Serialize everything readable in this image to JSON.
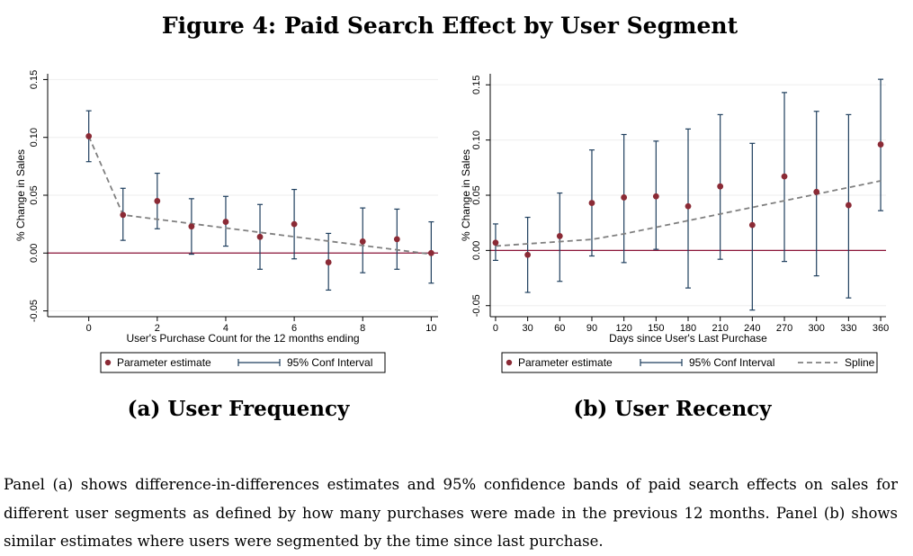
{
  "figure": {
    "title": "Figure 4: Paid Search Effect by User Segment",
    "note": "Panel (a) shows difference-in-differences estimates and 95% confidence bands of paid search effects on sales for different user segments as defined by how many purchases were made in the previous 12 months. Panel (b) shows similar estimates where users were segmented by the time since last purchase."
  },
  "colors": {
    "estimate": "#8B2A35",
    "ci": "#1F3F5E",
    "spline": "#808080",
    "zero_line": "#8B1538",
    "grid": "#EEEEEE"
  },
  "chart_data": [
    {
      "type": "scatter",
      "subcaption": "(a) User Frequency",
      "xlabel": "User's Purchase Count for the 12 months ending",
      "ylabel": "% Change in Sales",
      "xlim": [
        -1.2,
        10.2
      ],
      "ylim": [
        -0.055,
        0.155
      ],
      "xticks": [
        0,
        2,
        4,
        6,
        8,
        10
      ],
      "xtick_labels": [
        "0",
        "2",
        "4",
        "6",
        "8",
        "10"
      ],
      "yticks": [
        -0.05,
        0,
        0.05,
        0.1,
        0.15
      ],
      "ytick_labels": [
        "-0.05",
        "0.00",
        "0.05",
        "0.10",
        "0.15"
      ],
      "grid": true,
      "zero_line": true,
      "legend_position": "bottom",
      "legend": [
        "Parameter estimate",
        "95% Conf Interval"
      ],
      "series": [
        {
          "name": "Parameter estimate",
          "x": [
            0,
            1,
            2,
            3,
            4,
            5,
            6,
            7,
            8,
            9,
            10
          ],
          "y": [
            0.101,
            0.033,
            0.045,
            0.023,
            0.027,
            0.014,
            0.025,
            -0.008,
            0.01,
            0.012,
            0.0
          ]
        },
        {
          "name": "95% Conf Interval",
          "x": [
            0,
            1,
            2,
            3,
            4,
            5,
            6,
            7,
            8,
            9,
            10
          ],
          "lower": [
            0.079,
            0.011,
            0.021,
            -0.001,
            0.006,
            -0.014,
            -0.005,
            -0.032,
            -0.017,
            -0.014,
            -0.026
          ],
          "upper": [
            0.123,
            0.056,
            0.069,
            0.047,
            0.049,
            0.042,
            0.055,
            0.017,
            0.039,
            0.038,
            0.027
          ]
        },
        {
          "name": "fit",
          "x": [
            0,
            1,
            10
          ],
          "y": [
            0.101,
            0.033,
            -0.001
          ]
        }
      ]
    },
    {
      "type": "scatter",
      "subcaption": "(b) User Recency",
      "xlabel": "Days since User's Last Purchase",
      "ylabel": "% Change in Sales",
      "xlim": [
        -5,
        365
      ],
      "ylim": [
        -0.06,
        0.16
      ],
      "xticks": [
        0,
        30,
        60,
        90,
        120,
        150,
        180,
        210,
        240,
        270,
        300,
        330,
        360
      ],
      "xtick_labels": [
        "0",
        "30",
        "60",
        "90",
        "120",
        "150",
        "180",
        "210",
        "240",
        "270",
        "300",
        "330",
        "360"
      ],
      "yticks": [
        -0.05,
        0,
        0.05,
        0.1,
        0.15
      ],
      "ytick_labels": [
        "-0.05",
        "0.00",
        "0.05",
        "0.10",
        "0.15"
      ],
      "grid": true,
      "zero_line": true,
      "legend_position": "bottom",
      "legend": [
        "Parameter estimate",
        "95% Conf Interval",
        "Spline"
      ],
      "series": [
        {
          "name": "Parameter estimate",
          "x": [
            0,
            30,
            60,
            90,
            120,
            150,
            180,
            210,
            240,
            270,
            300,
            330,
            360
          ],
          "y": [
            0.007,
            -0.004,
            0.013,
            0.043,
            0.048,
            0.049,
            0.04,
            0.058,
            0.023,
            0.067,
            0.053,
            0.041,
            0.096
          ]
        },
        {
          "name": "95% Conf Interval",
          "x": [
            0,
            30,
            60,
            90,
            120,
            150,
            180,
            210,
            240,
            270,
            300,
            330,
            360
          ],
          "lower": [
            -0.009,
            -0.038,
            -0.028,
            -0.005,
            -0.011,
            0.001,
            -0.034,
            -0.008,
            -0.054,
            -0.01,
            -0.023,
            -0.043,
            0.036
          ],
          "upper": [
            0.024,
            0.03,
            0.052,
            0.091,
            0.105,
            0.099,
            0.11,
            0.123,
            0.097,
            0.143,
            0.126,
            0.123,
            0.155
          ]
        },
        {
          "name": "Spline",
          "x": [
            0,
            30,
            60,
            90,
            120,
            150,
            180,
            210,
            240,
            270,
            300,
            330,
            360
          ],
          "y": [
            0.004,
            0.006,
            0.008,
            0.01,
            0.015,
            0.021,
            0.027,
            0.033,
            0.039,
            0.045,
            0.051,
            0.057,
            0.063
          ]
        }
      ]
    }
  ]
}
